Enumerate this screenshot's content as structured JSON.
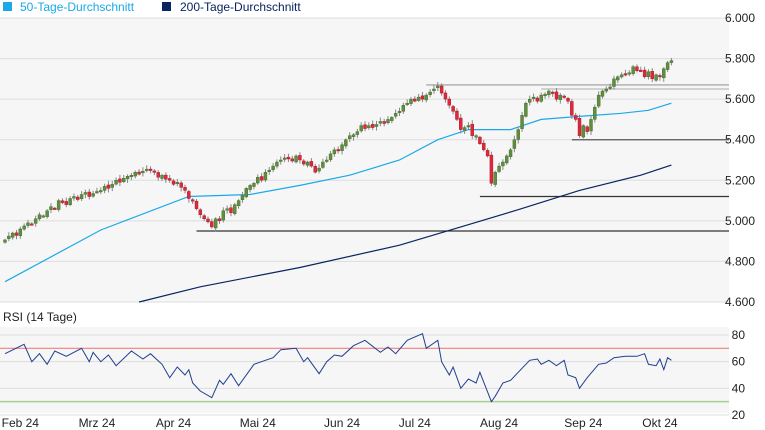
{
  "legend": [
    {
      "label": "50-Tage-Durchschnitt",
      "color": "#1aa9e8"
    },
    {
      "label": "200-Tage-Durchschnitt",
      "color": "#0a2463"
    }
  ],
  "chart_data": [
    {
      "type": "candlestick",
      "ylim": [
        4600,
        6000
      ],
      "y_ticks": [
        {
          "value": 6000,
          "label": "6.000"
        },
        {
          "value": 5800,
          "label": "5.800"
        },
        {
          "value": 5600,
          "label": "5.600"
        },
        {
          "value": 5400,
          "label": "5.400"
        },
        {
          "value": 5200,
          "label": "5.200"
        },
        {
          "value": 5000,
          "label": "5.000"
        },
        {
          "value": 4800,
          "label": "4.800"
        },
        {
          "value": 4600,
          "label": "4.600"
        }
      ],
      "grid": true,
      "colors": {
        "up": "#5f8f3e",
        "down": "#e0283a",
        "wick": "#888888",
        "grid": "#dddddd",
        "background": "#f6f6f6"
      },
      "closes": [
        4906,
        4925,
        4940,
        4928,
        4960,
        4975,
        4990,
        4985,
        5010,
        5030,
        5025,
        5050,
        5070,
        5060,
        5100,
        5090,
        5080,
        5110,
        5120,
        5105,
        5130,
        5140,
        5120,
        5135,
        5145,
        5150,
        5170,
        5160,
        5180,
        5200,
        5190,
        5210,
        5220,
        5225,
        5240,
        5230,
        5245,
        5255,
        5250,
        5240,
        5215,
        5225,
        5205,
        5200,
        5180,
        5190,
        5165,
        5150,
        5110,
        5100,
        5060,
        5030,
        5010,
        4995,
        4970,
        5010,
        5000,
        5050,
        5060,
        5040,
        5080,
        5100,
        5125,
        5160,
        5175,
        5185,
        5215,
        5200,
        5240,
        5250,
        5270,
        5290,
        5300,
        5310,
        5305,
        5295,
        5320,
        5300,
        5280,
        5290,
        5270,
        5240,
        5260,
        5290,
        5300,
        5330,
        5350,
        5345,
        5375,
        5400,
        5420,
        5425,
        5440,
        5470,
        5455,
        5470,
        5460,
        5475,
        5490,
        5480,
        5500,
        5510,
        5530,
        5540,
        5570,
        5580,
        5600,
        5590,
        5610,
        5600,
        5620,
        5635,
        5650,
        5665,
        5630,
        5600,
        5570,
        5540,
        5500,
        5450,
        5460,
        5470,
        5420,
        5420,
        5380,
        5350,
        5320,
        5185,
        5240,
        5270,
        5290,
        5320,
        5350,
        5400,
        5450,
        5520,
        5580,
        5600,
        5610,
        5590,
        5620,
        5625,
        5640,
        5630,
        5600,
        5620,
        5610,
        5590,
        5520,
        5500,
        5420,
        5470,
        5440,
        5500,
        5560,
        5620,
        5640,
        5650,
        5660,
        5700,
        5710,
        5720,
        5725,
        5730,
        5760,
        5740,
        5740,
        5710,
        5735,
        5700,
        5720,
        5710,
        5750,
        5780,
        5790
      ],
      "sma50": [
        [
          0,
          4700
        ],
        [
          25,
          4955
        ],
        [
          48,
          5120
        ],
        [
          64,
          5130
        ],
        [
          77,
          5175
        ],
        [
          90,
          5225
        ],
        [
          103,
          5300
        ],
        [
          113,
          5400
        ],
        [
          121,
          5450
        ],
        [
          132,
          5450
        ],
        [
          140,
          5500
        ],
        [
          150,
          5515
        ],
        [
          161,
          5530
        ],
        [
          168,
          5545
        ],
        [
          174,
          5580
        ]
      ],
      "sma200": [
        [
          35,
          4600
        ],
        [
          51,
          4675
        ],
        [
          77,
          4770
        ],
        [
          103,
          4880
        ],
        [
          119,
          4970
        ],
        [
          134,
          5055
        ],
        [
          150,
          5150
        ],
        [
          166,
          5225
        ],
        [
          174,
          5275
        ]
      ],
      "levels": [
        {
          "value": 5670,
          "from": 110,
          "color": "#999999"
        },
        {
          "value": 5650,
          "from": 140,
          "color": "#bbbbbb"
        },
        {
          "value": 5400,
          "from": 148,
          "color": "#555555"
        },
        {
          "value": 5120,
          "from": 124,
          "color": "#333333"
        },
        {
          "value": 4950,
          "from": 50,
          "color": "#333333"
        }
      ]
    },
    {
      "type": "line",
      "title": "RSI (14 Tage)",
      "ylim": [
        20,
        80
      ],
      "y_ticks": [
        {
          "value": 80,
          "label": "80"
        },
        {
          "value": 60,
          "label": "60"
        },
        {
          "value": 40,
          "label": "40"
        },
        {
          "value": 20,
          "label": "20"
        }
      ],
      "overbought": 70,
      "oversold": 30,
      "colors": {
        "line": "#1f3f8f",
        "overbought": "#f08080",
        "oversold": "#a8d08d"
      },
      "points": [
        [
          0,
          66
        ],
        [
          5,
          73
        ],
        [
          7,
          60
        ],
        [
          9,
          66
        ],
        [
          11,
          58
        ],
        [
          13,
          68
        ],
        [
          16,
          64
        ],
        [
          20,
          70
        ],
        [
          22,
          60
        ],
        [
          23,
          67
        ],
        [
          25,
          60
        ],
        [
          27,
          65
        ],
        [
          29,
          57
        ],
        [
          33,
          68
        ],
        [
          36,
          62
        ],
        [
          38,
          66
        ],
        [
          41,
          58
        ],
        [
          43,
          48
        ],
        [
          45,
          56
        ],
        [
          47,
          50
        ],
        [
          48,
          54
        ],
        [
          49,
          44
        ],
        [
          51,
          38
        ],
        [
          54,
          33
        ],
        [
          56,
          46
        ],
        [
          57,
          43
        ],
        [
          59,
          51
        ],
        [
          61,
          42
        ],
        [
          65,
          58
        ],
        [
          68,
          61
        ],
        [
          70,
          63
        ],
        [
          72,
          69
        ],
        [
          76,
          70
        ],
        [
          78,
          60
        ],
        [
          79,
          63
        ],
        [
          82,
          51
        ],
        [
          84,
          60
        ],
        [
          86,
          65
        ],
        [
          88,
          64
        ],
        [
          91,
          72
        ],
        [
          94,
          76
        ],
        [
          98,
          67
        ],
        [
          100,
          71
        ],
        [
          102,
          66
        ],
        [
          105,
          76
        ],
        [
          109,
          81
        ],
        [
          110,
          70
        ],
        [
          113,
          76
        ],
        [
          114,
          60
        ],
        [
          116,
          50
        ],
        [
          117,
          56
        ],
        [
          119,
          40
        ],
        [
          121,
          47
        ],
        [
          123,
          44
        ],
        [
          124,
          52
        ],
        [
          127,
          30
        ],
        [
          128,
          34
        ],
        [
          130,
          44
        ],
        [
          132,
          46
        ],
        [
          134,
          52
        ],
        [
          137,
          61
        ],
        [
          139,
          62
        ],
        [
          140,
          58
        ],
        [
          142,
          61
        ],
        [
          144,
          57
        ],
        [
          146,
          61
        ],
        [
          147,
          50
        ],
        [
          149,
          48
        ],
        [
          150,
          40
        ],
        [
          152,
          48
        ],
        [
          155,
          58
        ],
        [
          157,
          59
        ],
        [
          159,
          63
        ],
        [
          162,
          64
        ],
        [
          165,
          64
        ],
        [
          167,
          66
        ],
        [
          168,
          58
        ],
        [
          170,
          57
        ],
        [
          171,
          62
        ],
        [
          172,
          54
        ],
        [
          173,
          63
        ],
        [
          174,
          61
        ]
      ]
    }
  ],
  "x_axis": {
    "ticks": [
      {
        "label": "Feb 24",
        "index": 4
      },
      {
        "label": "Mrz 24",
        "index": 24
      },
      {
        "label": "Apr 24",
        "index": 44
      },
      {
        "label": "Mai 24",
        "index": 66
      },
      {
        "label": "Jun 24",
        "index": 88
      },
      {
        "label": "Jul 24",
        "index": 107
      },
      {
        "label": "Aug 24",
        "index": 129
      },
      {
        "label": "Sep 24",
        "index": 151
      },
      {
        "label": "Okt 24",
        "index": 171
      }
    ]
  }
}
